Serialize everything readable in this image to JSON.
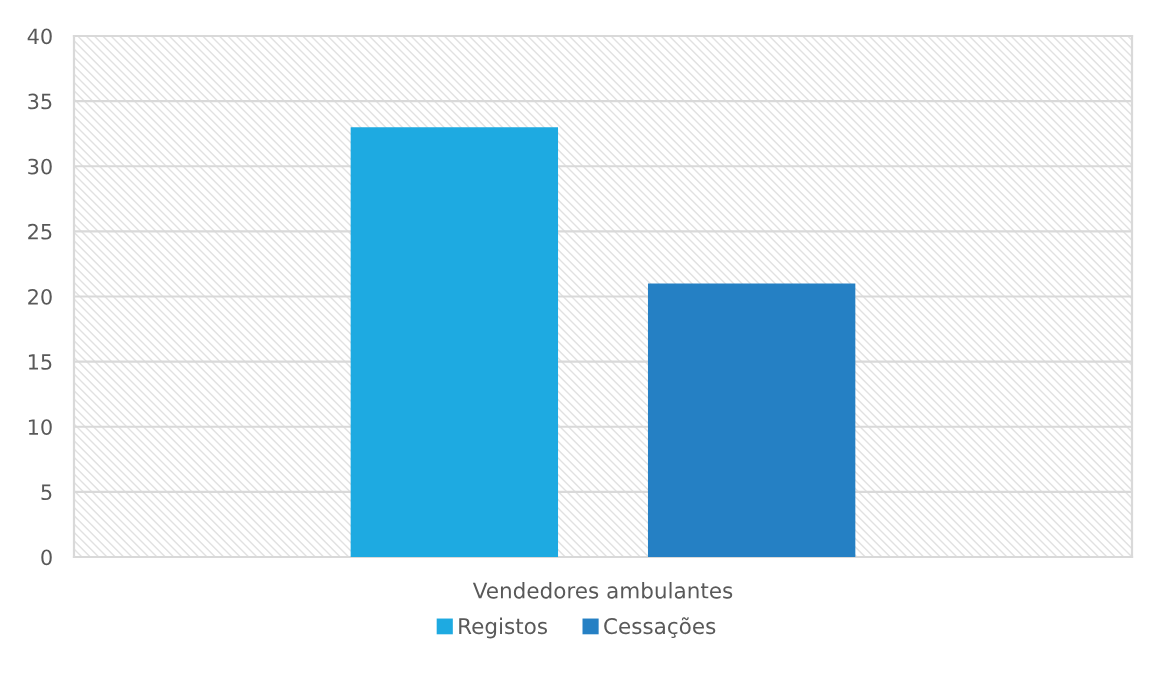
{
  "chart_data": {
    "type": "bar",
    "categories": [
      "Vendedores ambulantes"
    ],
    "series": [
      {
        "name": "Registos",
        "color": "#1eaae1",
        "values": [
          33
        ]
      },
      {
        "name": "Cessações",
        "color": "#2580c4",
        "values": [
          21
        ]
      }
    ],
    "ylim": [
      0,
      40
    ],
    "yticks": [
      0,
      5,
      10,
      15,
      20,
      25,
      30,
      35,
      40
    ],
    "grid": "y",
    "legend": "bottom"
  }
}
